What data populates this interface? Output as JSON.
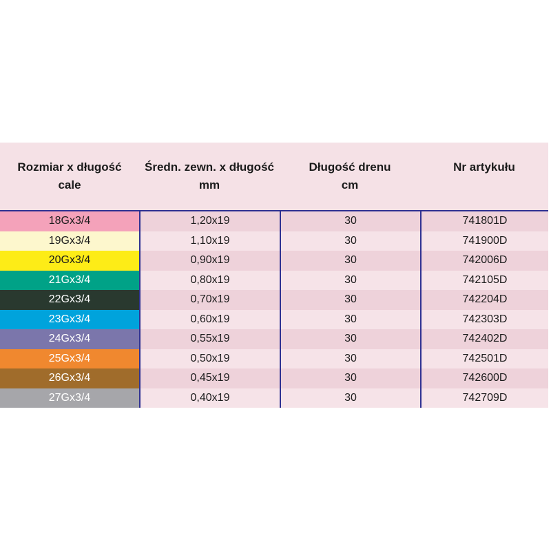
{
  "table": {
    "headers": [
      {
        "line1": "Rozmiar x długość",
        "line2": "cale"
      },
      {
        "line1": "Średn. zewn. x długość",
        "line2": "mm"
      },
      {
        "line1": "Długość drenu",
        "line2": "cm"
      },
      {
        "line1": "Nr artykułu",
        "line2": ""
      }
    ],
    "rows": [
      {
        "size": "18Gx3/4",
        "diameter": "1,20x19",
        "drain_length": "30",
        "article_no": "741801D",
        "size_bg": "#f4a2ba",
        "size_text": "#1b1b1b"
      },
      {
        "size": "19Gx3/4",
        "diameter": "1,10x19",
        "drain_length": "30",
        "article_no": "741900D",
        "size_bg": "#fdf7cd",
        "size_text": "#1b1b1b"
      },
      {
        "size": "20Gx3/4",
        "diameter": "0,90x19",
        "drain_length": "30",
        "article_no": "742006D",
        "size_bg": "#fdec17",
        "size_text": "#1b1b1b"
      },
      {
        "size": "21Gx3/4",
        "diameter": "0,80x19",
        "drain_length": "30",
        "article_no": "742105D",
        "size_bg": "#00a287",
        "size_text": "#ffffff"
      },
      {
        "size": "22Gx3/4",
        "diameter": "0,70x19",
        "drain_length": "30",
        "article_no": "742204D",
        "size_bg": "#29392f",
        "size_text": "#ffffff"
      },
      {
        "size": "23Gx3/4",
        "diameter": "0,60x19",
        "drain_length": "30",
        "article_no": "742303D",
        "size_bg": "#00a3dc",
        "size_text": "#ffffff"
      },
      {
        "size": "24Gx3/4",
        "diameter": "0,55x19",
        "drain_length": "30",
        "article_no": "742402D",
        "size_bg": "#7b76ab",
        "size_text": "#ffffff"
      },
      {
        "size": "25Gx3/4",
        "diameter": "0,50x19",
        "drain_length": "30",
        "article_no": "742501D",
        "size_bg": "#f0882f",
        "size_text": "#ffffff"
      },
      {
        "size": "26Gx3/4",
        "diameter": "0,45x19",
        "drain_length": "30",
        "article_no": "742600D",
        "size_bg": "#a06c2b",
        "size_text": "#ffffff"
      },
      {
        "size": "27Gx3/4",
        "diameter": "0,40x19",
        "drain_length": "30",
        "article_no": "742709D",
        "size_bg": "#a6a6aa",
        "size_text": "#ffffff"
      }
    ]
  },
  "colors": {
    "header_bg": "#f5e1e6",
    "row_light": "#f6e3e8",
    "row_dark": "#eed2da",
    "border": "#2e3192",
    "page_bg": "#ffffff"
  }
}
